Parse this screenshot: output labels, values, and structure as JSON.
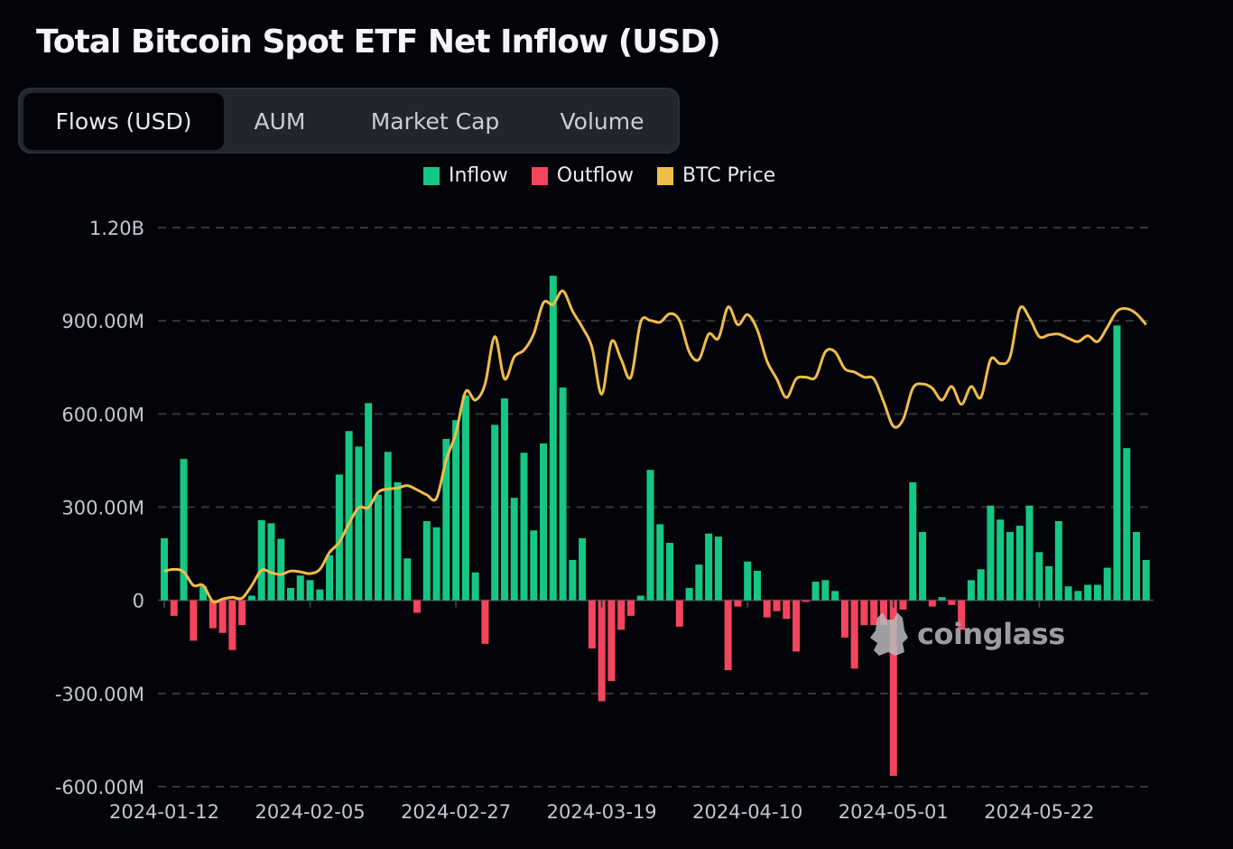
{
  "title": "Total Bitcoin Spot ETF Net Inflow (USD)",
  "tabs": [
    {
      "label": "Flows (USD)",
      "active": true
    },
    {
      "label": "AUM",
      "active": false
    },
    {
      "label": "Market Cap",
      "active": false
    },
    {
      "label": "Volume",
      "active": false
    }
  ],
  "watermark": "coinglass",
  "colors": {
    "inflow": "#16c784",
    "outflow": "#f4455f",
    "price": "#f0bc4a",
    "background": "#030409",
    "grid": "#34363c"
  },
  "chart_data": {
    "type": "bar",
    "title": "Total Bitcoin Spot ETF Net Inflow (USD)",
    "legend": [
      "Inflow",
      "Outflow",
      "BTC Price"
    ],
    "legend_position": "top-center",
    "grid": true,
    "ylim": [
      -600000000,
      1200000000
    ],
    "y_ticks": [
      {
        "value": 1200000000,
        "label": "1.20B"
      },
      {
        "value": 900000000,
        "label": "900.00M"
      },
      {
        "value": 600000000,
        "label": "600.00M"
      },
      {
        "value": 300000000,
        "label": "300.00M"
      },
      {
        "value": 0,
        "label": "0"
      },
      {
        "value": -300000000,
        "label": "-300.00M"
      },
      {
        "value": -600000000,
        "label": "-600.00M"
      }
    ],
    "x_ticks": [
      "2024-01-12",
      "2024-02-05",
      "2024-02-27",
      "2024-03-19",
      "2024-04-10",
      "2024-05-01",
      "2024-05-22"
    ],
    "dates": [
      "2024-01-12",
      "2024-01-16",
      "2024-01-17",
      "2024-01-18",
      "2024-01-19",
      "2024-01-22",
      "2024-01-23",
      "2024-01-24",
      "2024-01-25",
      "2024-01-26",
      "2024-01-29",
      "2024-01-30",
      "2024-01-31",
      "2024-02-01",
      "2024-02-02",
      "2024-02-05",
      "2024-02-06",
      "2024-02-07",
      "2024-02-08",
      "2024-02-09",
      "2024-02-12",
      "2024-02-13",
      "2024-02-14",
      "2024-02-15",
      "2024-02-16",
      "2024-02-20",
      "2024-02-21",
      "2024-02-22",
      "2024-02-23",
      "2024-02-26",
      "2024-02-27",
      "2024-02-28",
      "2024-02-29",
      "2024-03-01",
      "2024-03-04",
      "2024-03-05",
      "2024-03-06",
      "2024-03-07",
      "2024-03-08",
      "2024-03-11",
      "2024-03-12",
      "2024-03-13",
      "2024-03-14",
      "2024-03-15",
      "2024-03-18",
      "2024-03-19",
      "2024-03-20",
      "2024-03-21",
      "2024-03-22",
      "2024-03-25",
      "2024-03-26",
      "2024-03-27",
      "2024-03-28",
      "2024-04-01",
      "2024-04-02",
      "2024-04-03",
      "2024-04-04",
      "2024-04-05",
      "2024-04-08",
      "2024-04-09",
      "2024-04-10",
      "2024-04-11",
      "2024-04-12",
      "2024-04-15",
      "2024-04-16",
      "2024-04-17",
      "2024-04-18",
      "2024-04-19",
      "2024-04-22",
      "2024-04-23",
      "2024-04-24",
      "2024-04-25",
      "2024-04-26",
      "2024-04-29",
      "2024-04-30",
      "2024-05-01",
      "2024-05-02",
      "2024-05-03",
      "2024-05-06",
      "2024-05-07",
      "2024-05-08",
      "2024-05-09",
      "2024-05-10",
      "2024-05-13",
      "2024-05-14",
      "2024-05-15",
      "2024-05-16",
      "2024-05-17",
      "2024-05-20",
      "2024-05-21",
      "2024-05-22",
      "2024-05-23",
      "2024-05-24",
      "2024-05-28",
      "2024-05-29",
      "2024-05-30",
      "2024-05-31",
      "2024-06-03",
      "2024-06-04",
      "2024-06-05",
      "2024-06-06",
      "2024-06-07"
    ],
    "net_flow_usd_millions": [
      200,
      -50,
      455,
      -130,
      45,
      -90,
      -105,
      -160,
      -80,
      15,
      258,
      248,
      198,
      40,
      80,
      65,
      35,
      145,
      405,
      545,
      495,
      635,
      340,
      478,
      380,
      135,
      -40,
      255,
      235,
      520,
      580,
      660,
      90,
      -140,
      565,
      650,
      330,
      475,
      225,
      505,
      1045,
      685,
      130,
      200,
      -155,
      -325,
      -260,
      -95,
      -50,
      15,
      420,
      245,
      185,
      -85,
      40,
      115,
      215,
      205,
      -225,
      -20,
      125,
      95,
      -55,
      -35,
      -60,
      -165,
      -5,
      60,
      65,
      30,
      -120,
      -220,
      -80,
      -80,
      -80,
      -565,
      -30,
      380,
      220,
      -20,
      10,
      -15,
      -95,
      65,
      100,
      305,
      260,
      220,
      240,
      305,
      155,
      110,
      255,
      45,
      30,
      50,
      50,
      105,
      885,
      490,
      220,
      130
    ],
    "btc_price_usd": [
      39900,
      40100,
      39800,
      38200,
      38200,
      36300,
      36600,
      36800,
      36700,
      38200,
      40000,
      39700,
      39500,
      39900,
      39800,
      39600,
      40100,
      42100,
      43300,
      45500,
      47400,
      47400,
      49200,
      49600,
      49700,
      50000,
      49500,
      48900,
      48500,
      53000,
      56200,
      61100,
      60100,
      62000,
      67600,
      62600,
      65200,
      66000,
      67900,
      71600,
      71400,
      73000,
      70600,
      68700,
      66300,
      60800,
      67000,
      64900,
      62800,
      69300,
      69500,
      69300,
      70300,
      69500,
      65800,
      64900,
      67900,
      67400,
      71100,
      69000,
      70200,
      68400,
      64700,
      62600,
      60400,
      62600,
      62800,
      62800,
      65800,
      65800,
      63800,
      63400,
      62800,
      62600,
      59900,
      57000,
      57800,
      61500,
      62000,
      61500,
      60100,
      61700,
      59600,
      61700,
      60400,
      64900,
      64400,
      65200,
      70900,
      69800,
      67600,
      67800,
      67900,
      67400,
      67000,
      67700,
      67000,
      68700,
      70600,
      70900,
      70300,
      69000
    ]
  }
}
